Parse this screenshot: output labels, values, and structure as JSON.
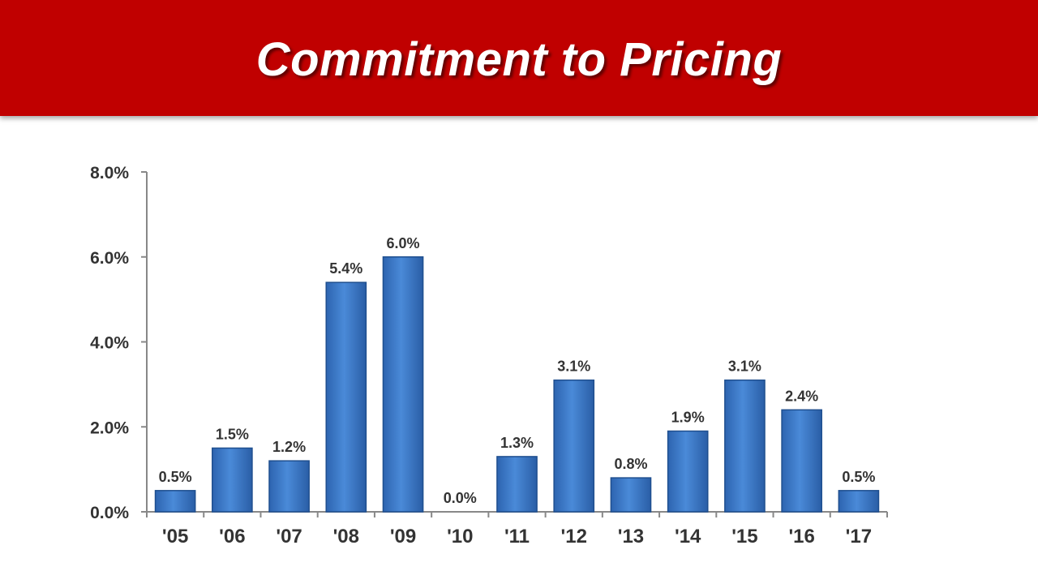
{
  "slide": {
    "title": "Commitment to Pricing"
  },
  "colors": {
    "banner": "#c00000",
    "bar": "#3a78c9",
    "axis": "#888888",
    "text": "#333333"
  },
  "chart_data": {
    "type": "bar",
    "title": "",
    "xlabel": "",
    "ylabel": "",
    "categories": [
      "'05",
      "'06",
      "'07",
      "'08",
      "'09",
      "'10",
      "'11",
      "'12",
      "'13",
      "'14",
      "'15",
      "'16",
      "'17"
    ],
    "values": [
      0.5,
      1.5,
      1.2,
      5.4,
      6.0,
      0.0,
      1.3,
      3.1,
      0.8,
      1.9,
      3.1,
      2.4,
      0.5
    ],
    "value_labels": [
      "0.5%",
      "1.5%",
      "1.2%",
      "5.4%",
      "6.0%",
      "0.0%",
      "1.3%",
      "3.1%",
      "0.8%",
      "1.9%",
      "3.1%",
      "2.4%",
      "0.5%"
    ],
    "ylim": [
      0,
      8
    ],
    "yticks": [
      0,
      2,
      4,
      6,
      8
    ],
    "ytick_labels": [
      "0.0%",
      "2.0%",
      "4.0%",
      "6.0%",
      "8.0%"
    ],
    "grid": false,
    "legend": "none"
  }
}
